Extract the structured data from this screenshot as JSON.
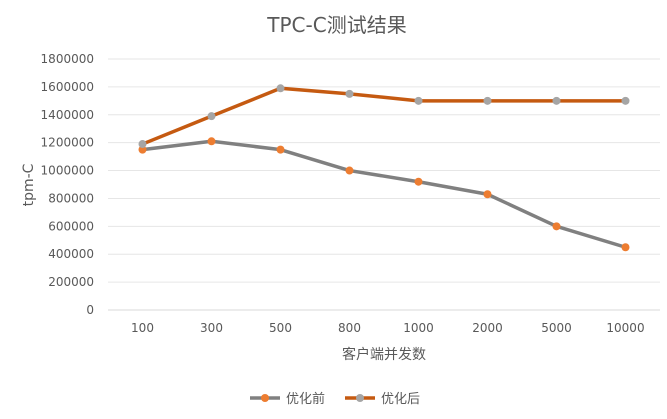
{
  "chart_data": {
    "type": "line",
    "title": "TPC-C测试结果",
    "xlabel": "客户端并发数",
    "ylabel": "tpm-C",
    "categories": [
      "100",
      "300",
      "500",
      "800",
      "1000",
      "2000",
      "5000",
      "10000"
    ],
    "ylim": [
      0,
      1800000
    ],
    "yticks": [
      0,
      200000,
      400000,
      600000,
      800000,
      1000000,
      1200000,
      1400000,
      1600000,
      1800000
    ],
    "grid": true,
    "legend_position": "bottom",
    "series": [
      {
        "name": "优化前",
        "line_color": "#808080",
        "marker_color": "#ED7D31",
        "values": [
          1150000,
          1210000,
          1150000,
          1000000,
          920000,
          830000,
          600000,
          450000
        ]
      },
      {
        "name": "优化后",
        "line_color": "#C55A11",
        "marker_color": "#A5A5A5",
        "values": [
          1190000,
          1390000,
          1590000,
          1550000,
          1500000,
          1500000,
          1500000,
          1500000
        ]
      }
    ]
  }
}
